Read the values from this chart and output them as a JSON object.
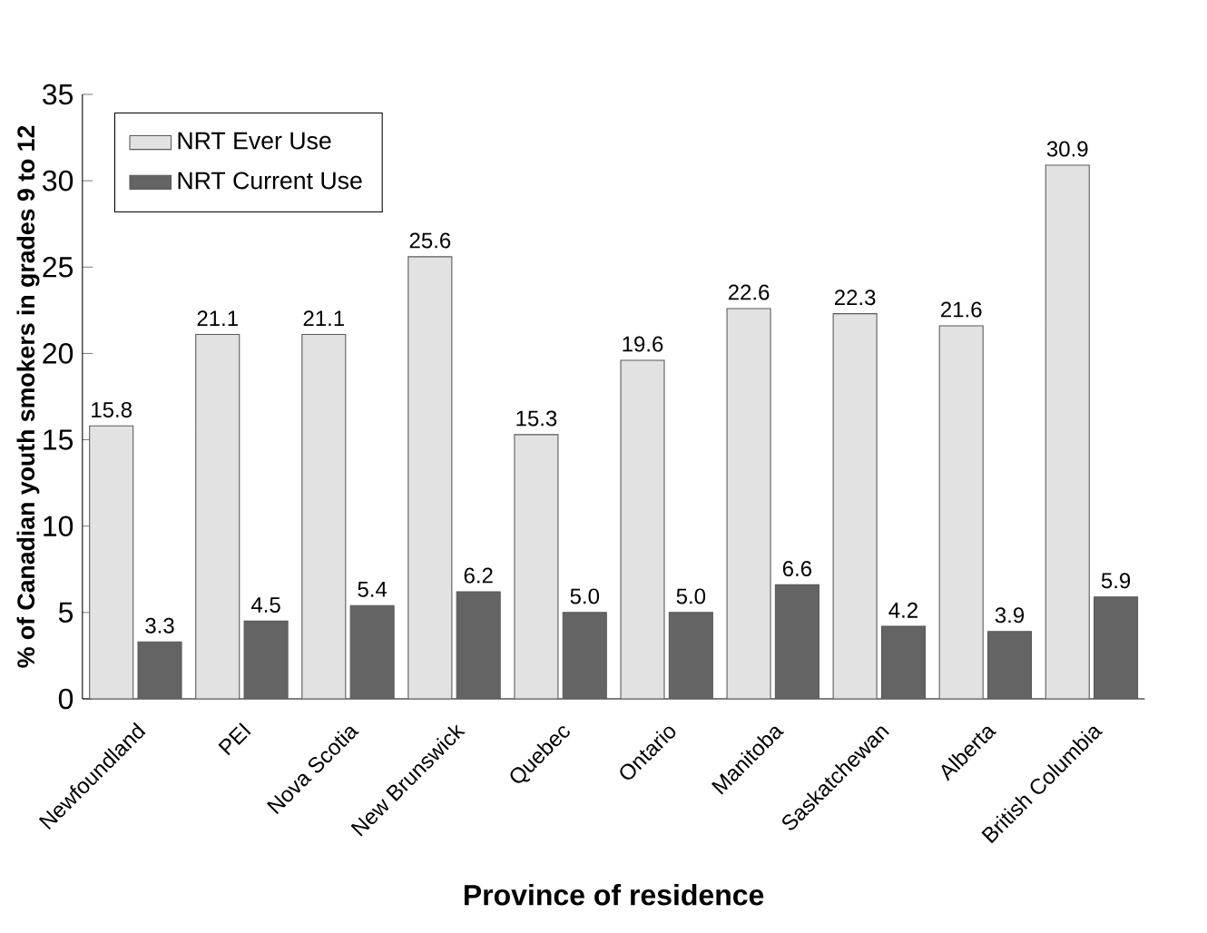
{
  "chart_data": {
    "type": "bar",
    "xlabel": "Province of residence",
    "ylabel": "% of Canadian youth smokers in grades 9 to 12",
    "categories": [
      "Newfoundland",
      "PEI",
      "Nova Scotia",
      "New Brunswick",
      "Quebec",
      "Ontario",
      "Manitoba",
      "Saskatchewan",
      "Alberta",
      "British Columbia"
    ],
    "series": [
      {
        "name": "NRT Ever Use",
        "color": "#e2e2e2",
        "values": [
          15.8,
          21.1,
          21.1,
          25.6,
          15.3,
          19.6,
          22.6,
          22.3,
          21.6,
          30.9
        ],
        "value_labels": [
          "15.8",
          "21.1",
          "21.1",
          "25.6",
          "15.3",
          "19.6",
          "22.6",
          "22.3",
          "21.6",
          "30.9"
        ]
      },
      {
        "name": "NRT Current Use",
        "color": "#646464",
        "values": [
          3.3,
          4.5,
          5.4,
          6.2,
          5.0,
          5.0,
          6.6,
          4.2,
          3.9,
          5.9
        ],
        "value_labels": [
          "3.3",
          "4.5",
          "5.4",
          "6.2",
          "5.0",
          "5.0",
          "6.6",
          "4.2",
          "3.9",
          "5.9"
        ]
      }
    ],
    "ylim": [
      0,
      35
    ],
    "yticks": [
      0,
      5,
      10,
      15,
      20,
      25,
      30,
      35
    ],
    "legend": "top left",
    "grid": false
  }
}
